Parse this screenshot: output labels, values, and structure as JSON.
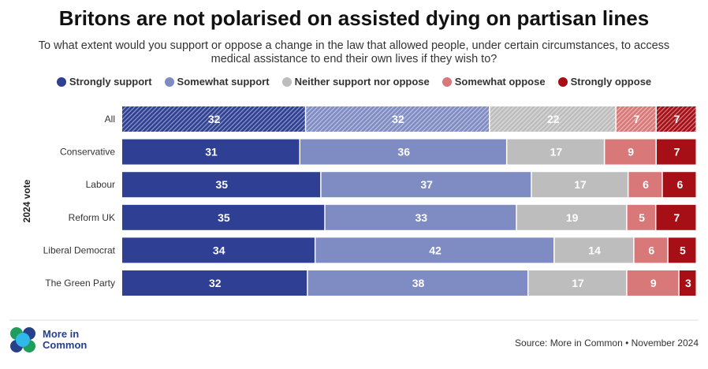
{
  "title": "Britons are not polarised on assisted dying on partisan lines",
  "subtitle": "To what extent would you support or oppose a change in the law that allowed people, under certain circumstances, to access medical assistance to end their own lives if they wish to?",
  "source": "Source: More in Common • November 2024",
  "logo": {
    "line1": "More in",
    "line2": "Common"
  },
  "chart_data": {
    "type": "bar",
    "orientation": "horizontal",
    "stacked": true,
    "ylabel": "2024 vote",
    "legend_position": "top",
    "categories": [
      "All",
      "Conservative",
      "Labour",
      "Reform UK",
      "Liberal Democrat",
      "The Green Party"
    ],
    "hatched_categories": [
      "All"
    ],
    "series": [
      {
        "name": "Strongly support",
        "color": "#2e3f94",
        "values": [
          32,
          31,
          35,
          35,
          34,
          32
        ]
      },
      {
        "name": "Somewhat support",
        "color": "#7f8cc4",
        "values": [
          32,
          36,
          37,
          33,
          42,
          38
        ]
      },
      {
        "name": "Neither support nor oppose",
        "color": "#bdbdbd",
        "values": [
          22,
          17,
          17,
          19,
          14,
          17
        ]
      },
      {
        "name": "Somewhat oppose",
        "color": "#d97878",
        "values": [
          7,
          9,
          6,
          5,
          6,
          9
        ]
      },
      {
        "name": "Strongly oppose",
        "color": "#a50f15",
        "values": [
          7,
          7,
          6,
          7,
          5,
          3
        ]
      }
    ]
  }
}
